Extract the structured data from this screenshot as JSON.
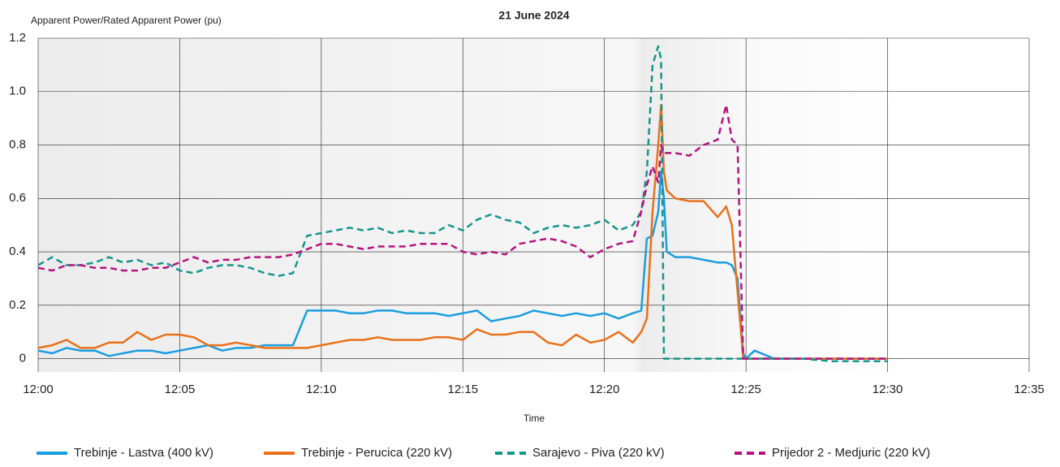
{
  "chart_data": {
    "type": "line",
    "title": "21 June 2024",
    "y_label": "Apparent Power/Rated Apparent Power (pu)",
    "x_label": "Time",
    "xlim": [
      0,
      35
    ],
    "xticks": [
      {
        "value": 0,
        "label": "12:00"
      },
      {
        "value": 5,
        "label": "12:05"
      },
      {
        "value": 10,
        "label": "12:10"
      },
      {
        "value": 15,
        "label": "12:15"
      },
      {
        "value": 20,
        "label": "12:20"
      },
      {
        "value": 25,
        "label": "12:25"
      },
      {
        "value": 30,
        "label": "12:30"
      },
      {
        "value": 35,
        "label": "12:35"
      }
    ],
    "ylim": [
      -0.05,
      1.2
    ],
    "yticks": [
      0,
      0.2,
      0.4,
      0.6,
      0.8,
      {
        "value": 1,
        "label": "1.0"
      },
      1.2
    ],
    "grid": true,
    "legend": "bottom",
    "x": [
      0,
      0.5,
      1,
      1.5,
      2,
      2.5,
      3,
      3.5,
      4,
      4.5,
      5,
      5.5,
      6,
      6.5,
      7,
      7.5,
      8,
      8.5,
      9,
      9.5,
      10,
      10.5,
      11,
      11.5,
      12,
      12.5,
      13,
      13.5,
      14,
      14.5,
      15,
      15.5,
      16,
      16.5,
      17,
      17.5,
      18,
      18.5,
      19,
      19.5,
      20,
      20.5,
      21,
      21.3,
      21.5,
      21.7,
      21.9,
      22,
      22.1,
      22.2,
      22.5,
      23,
      23.5,
      24,
      24.3,
      24.5,
      24.7,
      24.9,
      25,
      25.3,
      26,
      27,
      28,
      29,
      30
    ],
    "series": [
      {
        "name": "Trebinje - Lastva (400 kV)",
        "color": "#1a9de0",
        "dashed": false,
        "values": [
          0.03,
          0.02,
          0.04,
          0.03,
          0.03,
          0.01,
          0.02,
          0.03,
          0.03,
          0.02,
          0.03,
          0.04,
          0.05,
          0.03,
          0.04,
          0.04,
          0.05,
          0.05,
          0.05,
          0.18,
          0.18,
          0.18,
          0.17,
          0.17,
          0.18,
          0.18,
          0.17,
          0.17,
          0.17,
          0.16,
          0.17,
          0.18,
          0.14,
          0.15,
          0.16,
          0.18,
          0.17,
          0.16,
          0.17,
          0.16,
          0.17,
          0.15,
          0.17,
          0.18,
          0.45,
          0.46,
          0.55,
          0.7,
          0.6,
          0.4,
          0.38,
          0.38,
          0.37,
          0.36,
          0.36,
          0.35,
          0.3,
          0.02,
          0,
          0.03,
          0,
          0,
          0,
          0,
          0
        ]
      },
      {
        "name": "Trebinje - Perucica (220 kV)",
        "color": "#e8711a",
        "dashed": false,
        "values": [
          0.04,
          0.05,
          0.07,
          0.04,
          0.04,
          0.06,
          0.06,
          0.1,
          0.07,
          0.09,
          0.09,
          0.08,
          0.05,
          0.05,
          0.06,
          0.05,
          0.04,
          0.04,
          0.04,
          0.04,
          0.05,
          0.06,
          0.07,
          0.07,
          0.08,
          0.07,
          0.07,
          0.07,
          0.08,
          0.08,
          0.07,
          0.11,
          0.09,
          0.09,
          0.1,
          0.1,
          0.06,
          0.05,
          0.09,
          0.06,
          0.07,
          0.1,
          0.06,
          0.1,
          0.15,
          0.55,
          0.8,
          0.95,
          0.7,
          0.63,
          0.6,
          0.59,
          0.59,
          0.53,
          0.57,
          0.5,
          0.25,
          0,
          0,
          0,
          0,
          0,
          0,
          0,
          0
        ]
      },
      {
        "name": "Sarajevo - Piva (220 kV)",
        "color": "#14968c",
        "dashed": true,
        "values": [
          0.35,
          0.38,
          0.35,
          0.35,
          0.36,
          0.38,
          0.36,
          0.37,
          0.35,
          0.36,
          0.33,
          0.32,
          0.34,
          0.35,
          0.35,
          0.34,
          0.32,
          0.31,
          0.32,
          0.46,
          0.47,
          0.48,
          0.49,
          0.48,
          0.49,
          0.47,
          0.48,
          0.47,
          0.47,
          0.5,
          0.48,
          0.52,
          0.54,
          0.52,
          0.51,
          0.47,
          0.49,
          0.5,
          0.49,
          0.5,
          0.52,
          0.48,
          0.5,
          0.55,
          0.7,
          1.1,
          1.17,
          1.12,
          0,
          0,
          0,
          0,
          0,
          0,
          0,
          0,
          0,
          0,
          0,
          0,
          0,
          0,
          -0.01,
          -0.01,
          -0.01
        ]
      },
      {
        "name": "Prijedor 2 - Medjuric (220 kV)",
        "color": "#b5137e",
        "dashed": true,
        "values": [
          0.34,
          0.33,
          0.35,
          0.35,
          0.34,
          0.34,
          0.33,
          0.33,
          0.34,
          0.34,
          0.36,
          0.38,
          0.36,
          0.37,
          0.37,
          0.38,
          0.38,
          0.38,
          0.39,
          0.41,
          0.43,
          0.43,
          0.42,
          0.41,
          0.42,
          0.42,
          0.42,
          0.43,
          0.43,
          0.43,
          0.4,
          0.39,
          0.4,
          0.39,
          0.43,
          0.44,
          0.45,
          0.44,
          0.42,
          0.38,
          0.41,
          0.43,
          0.44,
          0.55,
          0.65,
          0.72,
          0.66,
          0.8,
          0.77,
          0.77,
          0.77,
          0.76,
          0.8,
          0.82,
          0.95,
          0.82,
          0.8,
          0,
          0,
          0,
          0,
          0,
          0,
          0,
          0
        ]
      }
    ]
  }
}
